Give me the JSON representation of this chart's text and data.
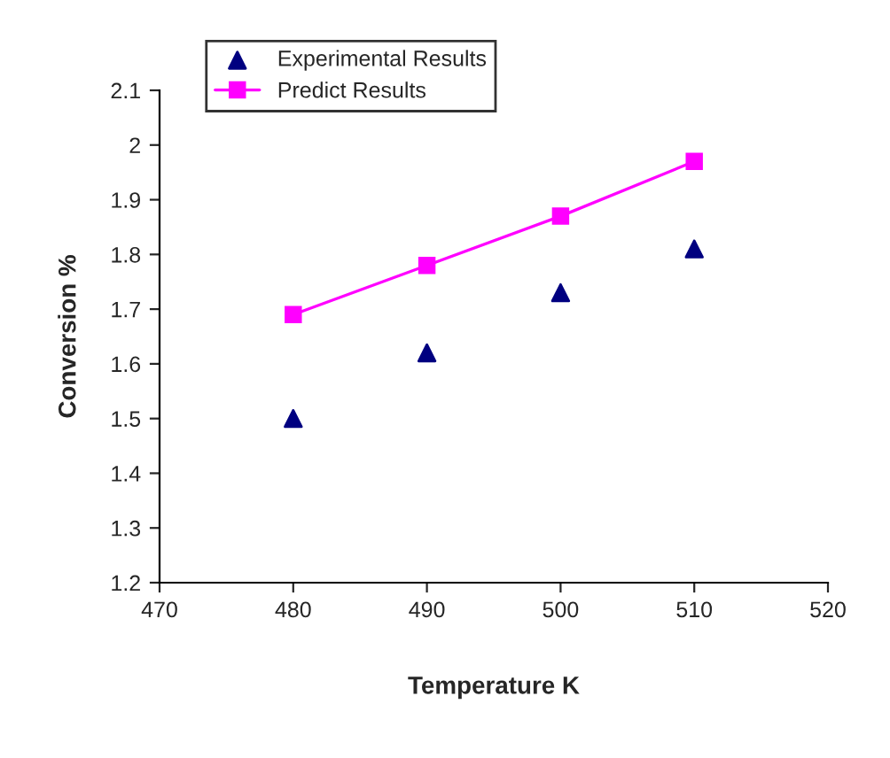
{
  "chart_data": {
    "type": "scatter",
    "xlabel": "Temperature K",
    "ylabel": "Conversion %",
    "x": [
      480,
      490,
      500,
      510
    ],
    "series": [
      {
        "name": "Experimental Results",
        "color": "#000080",
        "marker": "triangle",
        "values": [
          1.5,
          1.62,
          1.73,
          1.81
        ]
      },
      {
        "name": "Predict Results",
        "type": "line",
        "color": "#ff00ff",
        "marker": "square",
        "line_style": "solid",
        "values": [
          1.69,
          1.78,
          1.87,
          1.97
        ]
      }
    ],
    "xlim": [
      470,
      520
    ],
    "xticks": [
      470,
      480,
      490,
      500,
      510,
      520
    ],
    "ylim": [
      1.2,
      2.1
    ],
    "yticks": [
      {
        "value": 1.2,
        "label": "1.2"
      },
      {
        "value": 1.3,
        "label": "1.3"
      },
      {
        "value": 1.4,
        "label": "1.4"
      },
      {
        "value": 1.5,
        "label": "1.5"
      },
      {
        "value": 1.6,
        "label": "1.6"
      },
      {
        "value": 1.7,
        "label": "1.7"
      },
      {
        "value": 1.8,
        "label": "1.8"
      },
      {
        "value": 1.9,
        "label": "1.9"
      },
      {
        "value": 2,
        "label": "2"
      },
      {
        "value": 2.1,
        "label": "2.1"
      }
    ],
    "legend": "top left",
    "grid": false
  }
}
